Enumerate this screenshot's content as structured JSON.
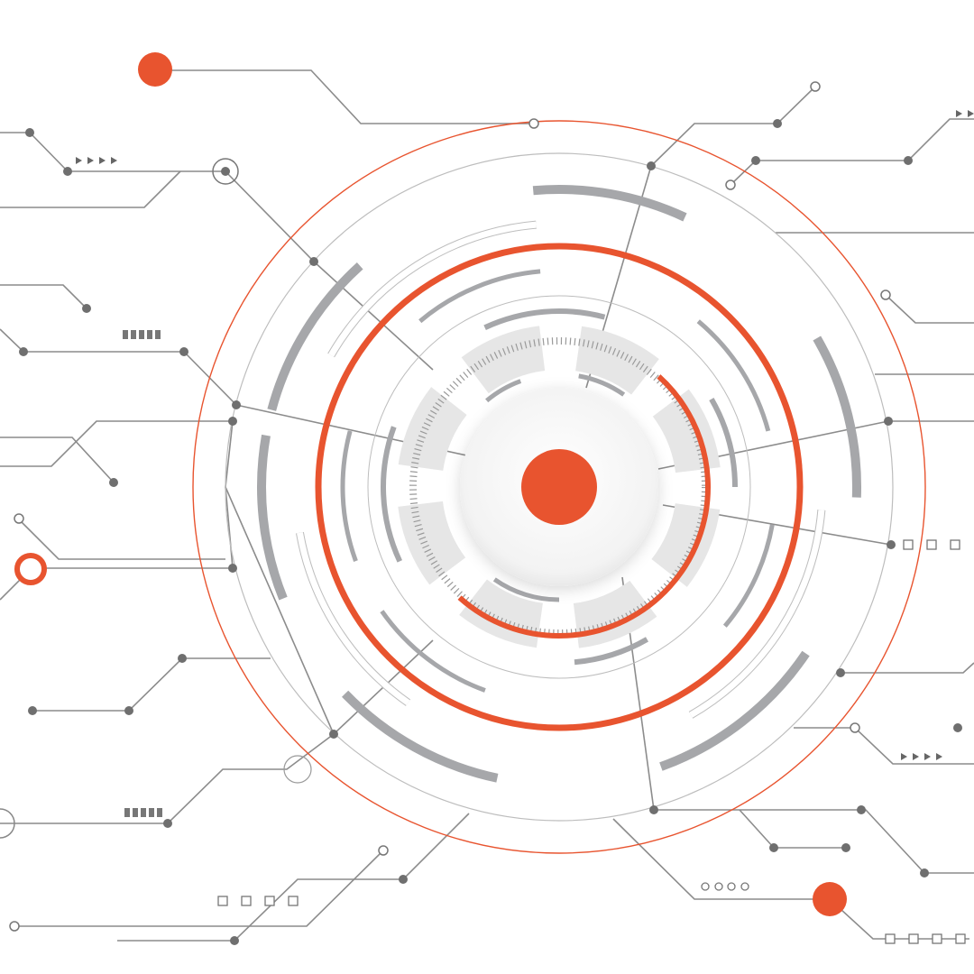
{
  "illustration": {
    "theme": "circuit-hud",
    "colors": {
      "accent": "#E8542F",
      "arc_gray": "#A6A7AA",
      "light_gray": "#E6E6E6",
      "line_gray": "#8C8C8C",
      "thin_gray": "#BDBDBD",
      "background": "#FFFFFF"
    },
    "icons": [
      "target-center-icon",
      "circuit-node-icon",
      "arrow-marker-icon"
    ]
  }
}
